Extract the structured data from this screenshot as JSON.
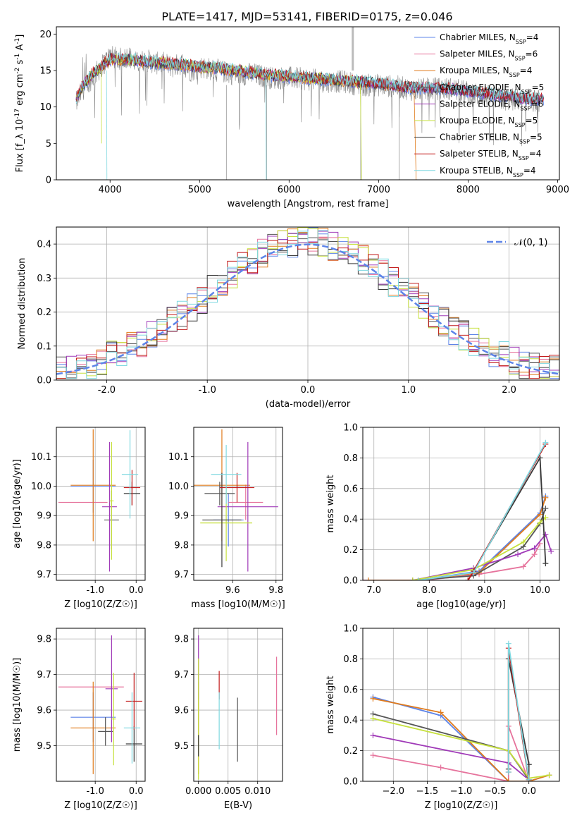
{
  "figure": {
    "title": "PLATE=1417, MJD=53141, FIBERID=0175, z=0.046",
    "series": [
      {
        "name": "Chabrier MILES",
        "nssp": "4",
        "color": "#5d84e8"
      },
      {
        "name": "Salpeter MILES",
        "nssp": "6",
        "color": "#e6739c"
      },
      {
        "name": "Kroupa MILES",
        "nssp": "4",
        "color": "#e07b1c"
      },
      {
        "name": "Chabrier ELODIE",
        "nssp": "5",
        "color": "#555555"
      },
      {
        "name": "Salpeter ELODIE",
        "nssp": "6",
        "color": "#a03ab8"
      },
      {
        "name": "Kroupa ELODIE",
        "nssp": "5",
        "color": "#c6e03c"
      },
      {
        "name": "Chabrier STELIB",
        "nssp": "5",
        "color": "#3a3a3a"
      },
      {
        "name": "Salpeter STELIB",
        "nssp": "4",
        "color": "#c21a1a"
      },
      {
        "name": "Kroupa STELIB",
        "nssp": "4",
        "color": "#7fd8e0"
      }
    ]
  },
  "chart_data": [
    {
      "id": "spectrum",
      "type": "line",
      "xlabel": "wavelength [Angstrom, rest frame]",
      "ylabel": "Flux [f_λ 10^-17 erg cm^-2 s^-1 A^-1]",
      "xlim": [
        3400,
        9020
      ],
      "ylim": [
        0,
        21
      ],
      "xticks": [
        4000,
        5000,
        6000,
        7000,
        8000,
        9000
      ],
      "yticks": [
        0,
        5,
        10,
        15,
        20
      ],
      "grid": false,
      "legend": "top-right",
      "observed_color": "#888888",
      "observed": {
        "x": [
          3620,
          3700,
          3800,
          3900,
          4000,
          4100,
          4200,
          4300,
          4400,
          4500,
          4600,
          4700,
          4800,
          4900,
          5000,
          5200,
          5400,
          5600,
          5800,
          6000,
          6200,
          6400,
          6600,
          6800,
          7000,
          7200,
          7400,
          7600,
          7800,
          8000,
          8200,
          8400,
          8600,
          8800
        ],
        "y": [
          10.5,
          12.5,
          14,
          15.5,
          17,
          16.5,
          17,
          16,
          16.5,
          16,
          16,
          15.5,
          16,
          15,
          15.5,
          15,
          14.5,
          14.5,
          14,
          14,
          13.8,
          13.5,
          13.5,
          13,
          13,
          12.8,
          12.3,
          12.5,
          12.5,
          12,
          11.5,
          11,
          11,
          10.8
        ]
      },
      "models_x": [
        3620,
        3700,
        3800,
        3900,
        4000,
        4200,
        4400,
        4600,
        4800,
        5000,
        5400,
        5800,
        6200,
        6600,
        7000,
        7400,
        7800,
        8200,
        8600,
        8800
      ],
      "models_y": [
        11,
        13,
        14.5,
        15.5,
        16.5,
        16.5,
        16.2,
        16,
        15.8,
        15.5,
        15,
        14.3,
        14,
        13.6,
        13.2,
        12.6,
        12.5,
        11.8,
        11.2,
        11
      ]
    },
    {
      "id": "residuals",
      "type": "histogram",
      "xlabel": "(data-model)/error",
      "ylabel": "Normed distribution",
      "xlim": [
        -2.5,
        2.5
      ],
      "ylim": [
        0,
        0.45
      ],
      "xticks": [
        -2,
        -1,
        0,
        1,
        2
      ],
      "yticks": [
        0,
        0.1,
        0.2,
        0.3,
        0.4
      ],
      "grid": true,
      "legend": "top-right",
      "gaussian_label": "𝒩(0, 1)",
      "gaussian_color": "#5d84e8",
      "bin_width": 0.1,
      "bin_start": -2.5
    },
    {
      "id": "age-vs-z",
      "type": "scatter",
      "xlabel": "Z [log10(Z/Z☉)]",
      "ylabel": "age [log10(age/yr)]",
      "xlim": [
        -1.95,
        0.22
      ],
      "ylim": [
        9.68,
        10.2
      ],
      "xticks": [
        -1,
        0
      ],
      "yticks": [
        9.7,
        9.8,
        9.9,
        10.0,
        10.1
      ],
      "grid": true,
      "points": [
        {
          "s": 0,
          "x": -1.05,
          "xerr": 0.55,
          "y": 10.0,
          "yerr": 0.09
        },
        {
          "s": 1,
          "x": -1.3,
          "xerr": 0.6,
          "y": 9.945,
          "yerr": 0.0
        },
        {
          "s": 2,
          "x": -1.05,
          "xerr": 0.55,
          "y": 10.003,
          "yerr": 0.19
        },
        {
          "s": 3,
          "x": -0.6,
          "xerr": 0.18,
          "y": 9.885,
          "yerr": 0.1
        },
        {
          "s": 4,
          "x": -0.65,
          "xerr": 0.18,
          "y": 9.93,
          "yerr": 0.22
        },
        {
          "s": 5,
          "x": -0.6,
          "xerr": 0.05,
          "y": 9.95,
          "yerr": 0.2
        },
        {
          "s": 6,
          "x": -0.1,
          "xerr": 0.2,
          "y": 9.975,
          "yerr": 0.04
        },
        {
          "s": 7,
          "x": -0.1,
          "xerr": 0.2,
          "y": 9.995,
          "yerr": 0.06
        },
        {
          "s": 8,
          "x": -0.15,
          "xerr": 0.2,
          "y": 10.04,
          "yerr": 0.15
        }
      ]
    },
    {
      "id": "age-vs-mass",
      "type": "scatter",
      "xlabel": "mass [log10(M/M☉)]",
      "ylabel": "",
      "xlim": [
        9.42,
        9.83
      ],
      "ylim": [
        9.68,
        10.2
      ],
      "xticks": [
        9.6,
        9.8
      ],
      "yticks": [
        9.7,
        9.8,
        9.9,
        10.0,
        10.1
      ],
      "grid": true,
      "points": [
        {
          "s": 0,
          "x": 9.58,
          "xerr": 0.07,
          "y": 9.885,
          "yerr": 0.09
        },
        {
          "s": 1,
          "x": 9.66,
          "xerr": 0.08,
          "y": 9.945,
          "yerr": 0.06
        },
        {
          "s": 2,
          "x": 9.55,
          "xerr": 0.13,
          "y": 10.003,
          "yerr": 0.19
        },
        {
          "s": 3,
          "x": 9.54,
          "xerr": 0.07,
          "y": 9.975,
          "yerr": 0.04
        },
        {
          "s": 4,
          "x": 9.67,
          "xerr": 0.14,
          "y": 9.93,
          "yerr": 0.22
        },
        {
          "s": 5,
          "x": 9.57,
          "xerr": 0.12,
          "y": 9.875,
          "yerr": 0.13
        },
        {
          "s": 6,
          "x": 9.55,
          "xerr": 0.09,
          "y": 9.885,
          "yerr": 0.16
        },
        {
          "s": 7,
          "x": 9.62,
          "xerr": 0.08,
          "y": 9.995,
          "yerr": 0.05
        },
        {
          "s": 8,
          "x": 9.57,
          "xerr": 0.07,
          "y": 10.04,
          "yerr": 0.1
        }
      ]
    },
    {
      "id": "weight-vs-age",
      "type": "line",
      "xlabel": "age [log10(age/yr)]",
      "ylabel": "mass weight",
      "xlim": [
        6.8,
        10.35
      ],
      "ylim": [
        0,
        1.0
      ],
      "xticks": [
        7,
        8,
        9,
        10
      ],
      "yticks": [
        0.0,
        0.2,
        0.4,
        0.6,
        0.8,
        1.0
      ],
      "grid": true,
      "series": [
        {
          "s": 0,
          "x": [
            7.8,
            8.9,
            10.0,
            10.1
          ],
          "y": [
            0.0,
            0.06,
            0.44,
            0.55
          ]
        },
        {
          "s": 1,
          "x": [
            6.8,
            7.9,
            8.9,
            9.7,
            9.9,
            10.0
          ],
          "y": [
            0.0,
            0.0,
            0.04,
            0.09,
            0.17,
            0.24
          ]
        },
        {
          "s": 2,
          "x": [
            6.9,
            7.8,
            8.9,
            10.0,
            10.1
          ],
          "y": [
            0.0,
            0.0,
            0.05,
            0.43,
            0.54
          ]
        },
        {
          "s": 3,
          "x": [
            7.7,
            8.8,
            9.7,
            10.0,
            10.1
          ],
          "y": [
            0.0,
            0.03,
            0.22,
            0.37,
            0.47
          ]
        },
        {
          "s": 4,
          "x": [
            7.7,
            8.8,
            9.6,
            9.9,
            10.1,
            10.2
          ],
          "y": [
            0.0,
            0.08,
            0.17,
            0.21,
            0.3,
            0.19
          ]
        },
        {
          "s": 5,
          "x": [
            7.7,
            8.8,
            9.7,
            10.0,
            10.1
          ],
          "y": [
            0.0,
            0.07,
            0.25,
            0.38,
            0.41
          ]
        },
        {
          "s": 6,
          "x": [
            8.7,
            8.8,
            10.0,
            10.1
          ],
          "y": [
            0.0,
            0.06,
            0.8,
            0.11
          ]
        },
        {
          "s": 7,
          "x": [
            8.7,
            8.8,
            10.1
          ],
          "y": [
            0.0,
            0.06,
            0.89
          ]
        },
        {
          "s": 8,
          "x": [
            7.8,
            8.8,
            10.1
          ],
          "y": [
            0.0,
            0.05,
            0.9
          ]
        }
      ]
    },
    {
      "id": "mass-vs-z",
      "type": "scatter",
      "xlabel": "Z [log10(Z/Z☉)]",
      "ylabel": "mass [log10(M/M☉)]",
      "xlim": [
        -1.95,
        0.22
      ],
      "ylim": [
        9.4,
        9.83
      ],
      "xticks": [
        -1,
        0
      ],
      "yticks": [
        9.5,
        9.6,
        9.7,
        9.8
      ],
      "grid": true,
      "points": [
        {
          "s": 0,
          "x": -1.05,
          "xerr": 0.55,
          "y": 9.58,
          "yerr": 0.07
        },
        {
          "s": 1,
          "x": -1.1,
          "xerr": 0.8,
          "y": 9.665,
          "yerr": 0.0
        },
        {
          "s": 2,
          "x": -1.05,
          "xerr": 0.55,
          "y": 9.55,
          "yerr": 0.13
        },
        {
          "s": 3,
          "x": -0.75,
          "xerr": 0.18,
          "y": 9.54,
          "yerr": 0.04
        },
        {
          "s": 4,
          "x": -0.6,
          "xerr": 0.15,
          "y": 9.66,
          "yerr": 0.15
        },
        {
          "s": 5,
          "x": -0.55,
          "xerr": 0.05,
          "y": 9.575,
          "yerr": 0.13
        },
        {
          "s": 6,
          "x": -0.05,
          "xerr": 0.2,
          "y": 9.505,
          "yerr": 0.05
        },
        {
          "s": 7,
          "x": -0.05,
          "xerr": 0.2,
          "y": 9.625,
          "yerr": 0.08
        },
        {
          "s": 8,
          "x": -0.1,
          "xerr": 0.2,
          "y": 9.55,
          "yerr": 0.1
        }
      ]
    },
    {
      "id": "mass-vs-ebv",
      "type": "scatter",
      "xlabel": "E(B-V)",
      "ylabel": "",
      "xlim": [
        -0.0008,
        0.0142
      ],
      "ylim": [
        9.4,
        9.83
      ],
      "xticks": [
        0.0,
        0.005,
        0.01
      ],
      "xticklabels": [
        "0.000",
        "0.005",
        "0.010"
      ],
      "yticks": [
        9.5,
        9.6,
        9.7,
        9.8
      ],
      "grid": true,
      "points": [
        {
          "s": 0,
          "x": 0.0,
          "y": 9.58,
          "yerr": 0.07
        },
        {
          "s": 1,
          "x": 0.0132,
          "y": 9.64,
          "yerr": 0.11
        },
        {
          "s": 2,
          "x": 0.0,
          "y": 9.55,
          "yerr": 0.13
        },
        {
          "s": 3,
          "x": 0.0066,
          "y": 9.545,
          "yerr": 0.09
        },
        {
          "s": 4,
          "x": 0.0,
          "y": 9.72,
          "yerr": 0.09
        },
        {
          "s": 5,
          "x": 0.0,
          "y": 9.575,
          "yerr": 0.17
        },
        {
          "s": 6,
          "x": 0.0,
          "y": 9.5,
          "yerr": 0.03
        },
        {
          "s": 7,
          "x": 0.0035,
          "y": 9.67,
          "yerr": 0.04
        },
        {
          "s": 8,
          "x": 0.0035,
          "y": 9.57,
          "yerr": 0.08
        }
      ]
    },
    {
      "id": "weight-vs-z",
      "type": "line",
      "xlabel": "Z [log10(Z/Z☉)]",
      "ylabel": "mass weight",
      "xlim": [
        -2.45,
        0.45
      ],
      "ylim": [
        0,
        1.0
      ],
      "xticks": [
        -2.0,
        -1.5,
        -1.0,
        -0.5,
        0.0
      ],
      "xticklabels": [
        "−2.0",
        "−1.5",
        "−1.0",
        "−0.5",
        "0.0"
      ],
      "yticks": [
        0.0,
        0.2,
        0.4,
        0.6,
        0.8,
        1.0
      ],
      "grid": true,
      "series": [
        {
          "s": 0,
          "x": [
            -2.3,
            -1.3,
            -0.3,
            0.0,
            0.3
          ],
          "y": [
            0.55,
            0.43,
            0.0,
            0.0,
            0.04
          ]
        },
        {
          "s": 1,
          "x": [
            -2.3,
            -1.3,
            -0.3,
            -0.3,
            0.0
          ],
          "y": [
            0.17,
            0.09,
            0.0,
            0.36,
            0.0
          ]
        },
        {
          "s": 2,
          "x": [
            -2.3,
            -1.3,
            -0.3,
            0.0,
            0.3
          ],
          "y": [
            0.54,
            0.45,
            0.0,
            0.0,
            0.04
          ]
        },
        {
          "s": 3,
          "x": [
            -2.3,
            -0.3,
            0.0,
            0.0
          ],
          "y": [
            0.44,
            0.2,
            0.01,
            0.11
          ]
        },
        {
          "s": 4,
          "x": [
            -2.3,
            -0.3,
            0.0
          ],
          "y": [
            0.3,
            0.12,
            0.01
          ]
        },
        {
          "s": 5,
          "x": [
            -2.3,
            -0.3,
            0.0,
            0.3
          ],
          "y": [
            0.41,
            0.2,
            0.02,
            0.04
          ]
        },
        {
          "s": 6,
          "x": [
            -0.3,
            -0.3,
            0.0
          ],
          "y": [
            0.08,
            0.8,
            0.11
          ]
        },
        {
          "s": 7,
          "x": [
            -0.3,
            -0.3,
            0.0
          ],
          "y": [
            0.06,
            0.87,
            0.0
          ]
        },
        {
          "s": 8,
          "x": [
            -0.3,
            -0.3,
            0.0
          ],
          "y": [
            0.06,
            0.9,
            0.01
          ]
        }
      ]
    }
  ]
}
